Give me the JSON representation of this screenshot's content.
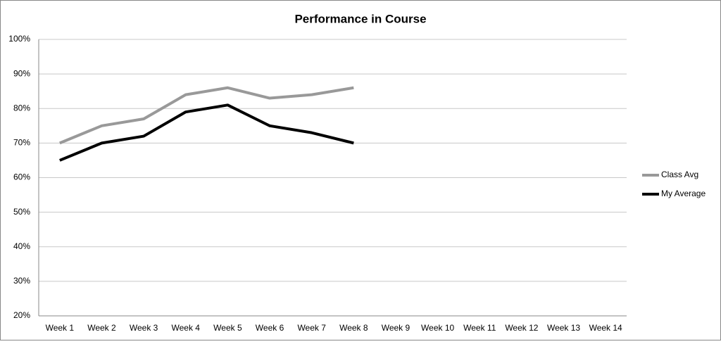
{
  "chart_data": {
    "type": "line",
    "title": "Performance in Course",
    "categories": [
      "Week 1",
      "Week 2",
      "Week 3",
      "Week 4",
      "Week 5",
      "Week 6",
      "Week 7",
      "Week 8",
      "Week 9",
      "Week 10",
      "Week 11",
      "Week 12",
      "Week 13",
      "Week 14"
    ],
    "series": [
      {
        "name": "Class Avg",
        "color": "#999999",
        "values": [
          70,
          75,
          77,
          84,
          86,
          83,
          84,
          86,
          null,
          null,
          null,
          null,
          null,
          null
        ]
      },
      {
        "name": "My Average",
        "color": "#000000",
        "values": [
          65,
          70,
          72,
          79,
          81,
          75,
          73,
          70,
          null,
          null,
          null,
          null,
          null,
          null
        ]
      }
    ],
    "ylim": [
      20,
      100
    ],
    "yticks": [
      {
        "value": 20,
        "label": "20%"
      },
      {
        "value": 30,
        "label": "30%"
      },
      {
        "value": 40,
        "label": "40%"
      },
      {
        "value": 50,
        "label": "50%"
      },
      {
        "value": 60,
        "label": "60%"
      },
      {
        "value": 70,
        "label": "70%"
      },
      {
        "value": 80,
        "label": "80%"
      },
      {
        "value": 90,
        "label": "90%"
      },
      {
        "value": 100,
        "label": "100%"
      }
    ],
    "grid": true,
    "legend": "right"
  }
}
